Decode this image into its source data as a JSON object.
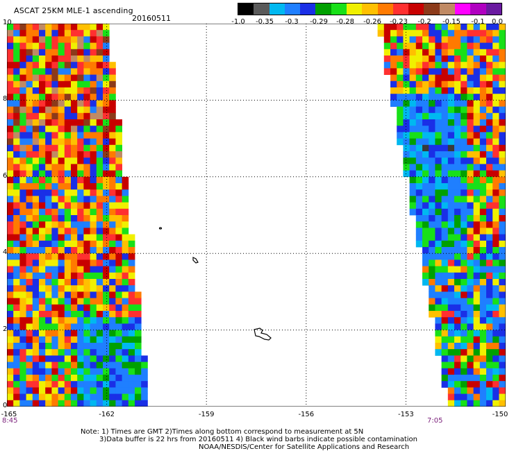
{
  "header": {
    "title": "ASCAT 25KM MLE-1 ascending",
    "date": "20160511"
  },
  "colorbar": {
    "labels": [
      "-1.0",
      "-0.35",
      "-0.3",
      "-0.29",
      "-0.28",
      "-0.26",
      "-0.23",
      "-0.2",
      "-0.15",
      "-0.1",
      "0.0"
    ],
    "colors": [
      "#000000",
      "#5a5a5a",
      "#00b8f0",
      "#1f7fff",
      "#1a2fe6",
      "#00a000",
      "#18e018",
      "#f0f000",
      "#ffc000",
      "#ff7a00",
      "#ff3030",
      "#c80000",
      "#8c3a1a",
      "#c08a64",
      "#ff00ff",
      "#b000c0",
      "#6a1aa0"
    ]
  },
  "map": {
    "lat_labels": [
      "10",
      "8",
      "6",
      "4",
      "2",
      "0"
    ],
    "lon_labels": [
      "-165",
      "-162",
      "-159",
      "-156",
      "-153",
      "-150"
    ],
    "lat_range": [
      0,
      10
    ],
    "lon_range": [
      -165,
      -150
    ],
    "grid_lat": [
      2,
      4,
      6,
      8
    ],
    "grid_lon": [
      -162,
      -159,
      -156,
      -153
    ]
  },
  "times": {
    "left": "8:45",
    "right": "7:05"
  },
  "notes": {
    "line1": "Note: 1) Times are GMT 2)Times along bottom correspond to measurement at 5N",
    "line2": "3)Data buffer is 22 hrs from 20160511 4) Black wind barbs indicate possible contamination",
    "line3": "NOAA/NESDIS/Center for Satellite Applications and Research"
  }
}
